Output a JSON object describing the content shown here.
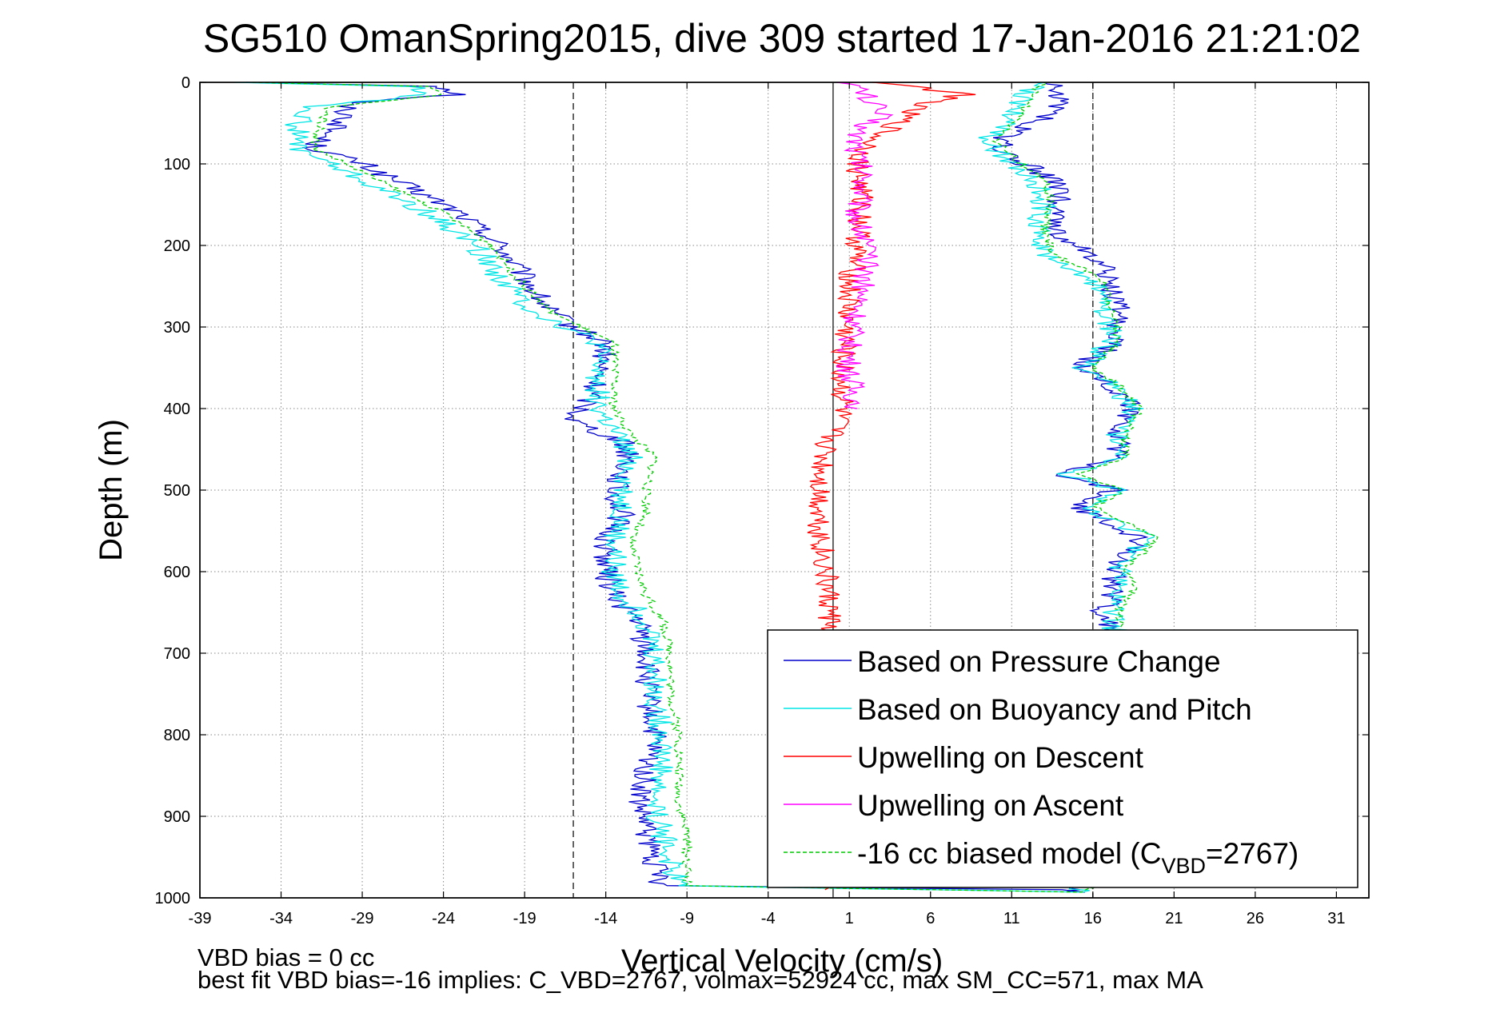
{
  "chart_data": {
    "type": "line",
    "title": "SG510 OmanSpring2015, dive 309 started 17-Jan-2016 21:21:02",
    "xlabel": "Vertical Velocity (cm/s)",
    "ylabel": "Depth (m)",
    "xlim": [
      -39,
      33
    ],
    "ylim": [
      1000,
      0
    ],
    "y_reversed": true,
    "grid": true,
    "legend_position": "bottom-right",
    "x_ticks": [
      -39,
      -34,
      -29,
      -24,
      -19,
      -14,
      -9,
      -4,
      1,
      6,
      11,
      16,
      21,
      26,
      31
    ],
    "y_ticks": [
      0,
      100,
      200,
      300,
      400,
      500,
      600,
      700,
      800,
      900,
      1000
    ],
    "reference_lines": [
      {
        "x": 0,
        "style": "solid"
      },
      {
        "x": -16,
        "style": "dashed"
      },
      {
        "x": 16,
        "style": "dashed"
      }
    ],
    "series": [
      {
        "name": "Based on Pressure Change",
        "color": "#0000cc",
        "style": "solid",
        "points": [
          [
            -36,
            0
          ],
          [
            -24,
            5
          ],
          [
            -23,
            15
          ],
          [
            -30,
            25
          ],
          [
            -30,
            45
          ],
          [
            -31,
            60
          ],
          [
            -32,
            80
          ],
          [
            -29,
            100
          ],
          [
            -26,
            130
          ],
          [
            -23,
            160
          ],
          [
            -20.5,
            200
          ],
          [
            -19,
            240
          ],
          [
            -17.5,
            280
          ],
          [
            -16,
            300
          ],
          [
            -14,
            320
          ],
          [
            -14.5,
            360
          ],
          [
            -15,
            390
          ],
          [
            -16,
            415
          ],
          [
            -13,
            440
          ],
          [
            -12.5,
            460
          ],
          [
            -13.5,
            500
          ],
          [
            -13,
            530
          ],
          [
            -14,
            560
          ],
          [
            -14,
            600
          ],
          [
            -13.5,
            630
          ],
          [
            -12,
            660
          ],
          [
            -11.5,
            700
          ],
          [
            -11.5,
            750
          ],
          [
            -11,
            800
          ],
          [
            -11.5,
            840
          ],
          [
            -12,
            880
          ],
          [
            -11.5,
            920
          ],
          [
            -11,
            960
          ],
          [
            -10.5,
            985
          ],
          [
            14,
            990
          ],
          [
            15,
            993
          ],
          [
            15,
            990
          ],
          [
            14,
            975
          ],
          [
            13,
            950
          ],
          [
            14,
            920
          ],
          [
            15,
            890
          ],
          [
            16,
            860
          ],
          [
            17,
            830
          ],
          [
            17.5,
            800
          ],
          [
            16.5,
            770
          ],
          [
            16,
            740
          ],
          [
            17,
            700
          ],
          [
            17.5,
            680
          ],
          [
            16.5,
            650
          ],
          [
            17.5,
            620
          ],
          [
            17,
            595
          ],
          [
            19,
            560
          ],
          [
            17,
            540
          ],
          [
            15,
            520
          ],
          [
            17.5,
            500
          ],
          [
            14,
            480
          ],
          [
            17.5,
            460
          ],
          [
            17.5,
            430
          ],
          [
            18.5,
            400
          ],
          [
            17,
            370
          ],
          [
            15,
            350
          ],
          [
            17.5,
            320
          ],
          [
            17.5,
            300
          ],
          [
            17.5,
            270
          ],
          [
            17,
            240
          ],
          [
            16,
            210
          ],
          [
            13.5,
            180
          ],
          [
            14,
            150
          ],
          [
            13.5,
            120
          ],
          [
            11,
            90
          ],
          [
            10,
            70
          ],
          [
            13.5,
            40
          ],
          [
            14,
            10
          ],
          [
            13,
            0
          ]
        ]
      },
      {
        "name": "Based on Buoyancy and Pitch",
        "color": "#00e5e5",
        "style": "solid",
        "points": [
          [
            -36.5,
            0
          ],
          [
            -26,
            5
          ],
          [
            -25,
            15
          ],
          [
            -32,
            30
          ],
          [
            -33,
            50
          ],
          [
            -33,
            80
          ],
          [
            -31,
            100
          ],
          [
            -28,
            130
          ],
          [
            -25,
            160
          ],
          [
            -22,
            200
          ],
          [
            -20.5,
            240
          ],
          [
            -18.5,
            280
          ],
          [
            -16.5,
            300
          ],
          [
            -14.5,
            320
          ],
          [
            -14.5,
            360
          ],
          [
            -14.5,
            400
          ],
          [
            -13.5,
            430
          ],
          [
            -12.5,
            460
          ],
          [
            -13,
            500
          ],
          [
            -13,
            530
          ],
          [
            -13.5,
            560
          ],
          [
            -13.5,
            600
          ],
          [
            -13,
            630
          ],
          [
            -11.5,
            660
          ],
          [
            -11,
            700
          ],
          [
            -11,
            750
          ],
          [
            -10.5,
            800
          ],
          [
            -10.5,
            840
          ],
          [
            -11,
            880
          ],
          [
            -10.5,
            920
          ],
          [
            -10,
            960
          ],
          [
            -9.5,
            985
          ],
          [
            15.5,
            993
          ],
          [
            15,
            985
          ],
          [
            14,
            960
          ],
          [
            14.5,
            920
          ],
          [
            15.5,
            880
          ],
          [
            16.5,
            840
          ],
          [
            17,
            800
          ],
          [
            16.5,
            770
          ],
          [
            16,
            740
          ],
          [
            17,
            700
          ],
          [
            17.5,
            680
          ],
          [
            17,
            650
          ],
          [
            18,
            620
          ],
          [
            17.5,
            595
          ],
          [
            19.5,
            560
          ],
          [
            17.5,
            540
          ],
          [
            15.5,
            520
          ],
          [
            17.5,
            500
          ],
          [
            14.5,
            480
          ],
          [
            17.5,
            460
          ],
          [
            17.5,
            430
          ],
          [
            18.5,
            400
          ],
          [
            17,
            370
          ],
          [
            15.5,
            350
          ],
          [
            17,
            320
          ],
          [
            17,
            300
          ],
          [
            16.5,
            270
          ],
          [
            16,
            240
          ],
          [
            13,
            210
          ],
          [
            12.5,
            180
          ],
          [
            13,
            150
          ],
          [
            12.5,
            120
          ],
          [
            10.5,
            90
          ],
          [
            9.5,
            70
          ],
          [
            11,
            40
          ],
          [
            12,
            10
          ],
          [
            13,
            0
          ]
        ]
      },
      {
        "name": "Upwelling on Descent",
        "color": "#ff0000",
        "style": "solid",
        "points": [
          [
            3,
            0
          ],
          [
            5,
            5
          ],
          [
            8,
            15
          ],
          [
            5,
            30
          ],
          [
            4,
            50
          ],
          [
            2.5,
            70
          ],
          [
            1.5,
            100
          ],
          [
            1.8,
            150
          ],
          [
            1.5,
            200
          ],
          [
            1,
            250
          ],
          [
            0.8,
            300
          ],
          [
            0.5,
            350
          ],
          [
            0.6,
            400
          ],
          [
            -0.5,
            450
          ],
          [
            -0.8,
            500
          ],
          [
            -0.8,
            550
          ],
          [
            -0.5,
            600
          ],
          [
            -0.2,
            650
          ],
          [
            0,
            700
          ],
          [
            0,
            760
          ],
          [
            -1,
            800
          ],
          [
            -1.5,
            850
          ],
          [
            -1.5,
            900
          ],
          [
            -1.5,
            950
          ],
          [
            -0.5,
            990
          ]
        ]
      },
      {
        "name": "Upwelling on Ascent",
        "color": "#ff00ff",
        "style": "solid",
        "points": [
          [
            1,
            0
          ],
          [
            2,
            15
          ],
          [
            3,
            40
          ],
          [
            1.5,
            60
          ],
          [
            1.5,
            90
          ],
          [
            2,
            120
          ],
          [
            1.5,
            160
          ],
          [
            2,
            200
          ],
          [
            2,
            240
          ],
          [
            1.5,
            280
          ],
          [
            1,
            320
          ],
          [
            1,
            360
          ],
          [
            1.5,
            400
          ]
        ]
      },
      {
        "name": "-16 cc biased model (C_VBD=2767)",
        "color": "#00cc00",
        "style": "dashed",
        "points": [
          [
            -36,
            0
          ],
          [
            -25,
            5
          ],
          [
            -24,
            15
          ],
          [
            -31,
            30
          ],
          [
            -31.5,
            50
          ],
          [
            -32,
            80
          ],
          [
            -30,
            100
          ],
          [
            -27,
            130
          ],
          [
            -24,
            160
          ],
          [
            -21,
            200
          ],
          [
            -19.5,
            240
          ],
          [
            -17.5,
            280
          ],
          [
            -15.5,
            300
          ],
          [
            -13.5,
            320
          ],
          [
            -13.5,
            360
          ],
          [
            -13.5,
            400
          ],
          [
            -12.5,
            430
          ],
          [
            -11,
            460
          ],
          [
            -11.5,
            500
          ],
          [
            -11.5,
            530
          ],
          [
            -12.5,
            560
          ],
          [
            -12,
            600
          ],
          [
            -11.5,
            630
          ],
          [
            -10.5,
            660
          ],
          [
            -10,
            700
          ],
          [
            -10,
            750
          ],
          [
            -9.5,
            800
          ],
          [
            -9.5,
            840
          ],
          [
            -9.5,
            880
          ],
          [
            -9,
            920
          ],
          [
            -9,
            960
          ],
          [
            -9,
            985
          ],
          [
            15.5,
            993
          ],
          [
            16,
            985
          ],
          [
            15,
            960
          ],
          [
            15.5,
            920
          ],
          [
            16,
            880
          ],
          [
            17,
            840
          ],
          [
            17.5,
            800
          ],
          [
            17,
            770
          ],
          [
            16.5,
            740
          ],
          [
            17.5,
            700
          ],
          [
            18,
            680
          ],
          [
            17.5,
            650
          ],
          [
            18.5,
            620
          ],
          [
            18,
            595
          ],
          [
            20,
            560
          ],
          [
            18,
            540
          ],
          [
            16,
            520
          ],
          [
            18,
            500
          ],
          [
            15,
            480
          ],
          [
            18,
            460
          ],
          [
            18,
            430
          ],
          [
            19,
            400
          ],
          [
            17.5,
            370
          ],
          [
            16,
            350
          ],
          [
            17.5,
            320
          ],
          [
            17.5,
            300
          ],
          [
            17,
            270
          ],
          [
            16.5,
            240
          ],
          [
            13.5,
            210
          ],
          [
            13,
            180
          ],
          [
            13.5,
            150
          ],
          [
            13,
            120
          ],
          [
            11,
            90
          ],
          [
            10,
            70
          ],
          [
            11.5,
            40
          ],
          [
            12.5,
            10
          ],
          [
            13,
            0
          ]
        ]
      }
    ],
    "legend_entries": [
      {
        "label": "Based on Pressure Change",
        "color": "#0000cc",
        "style": "solid"
      },
      {
        "label": "Based on Buoyancy and Pitch",
        "color": "#00e5e5",
        "style": "solid"
      },
      {
        "label": "Upwelling on Descent",
        "color": "#ff0000",
        "style": "solid"
      },
      {
        "label": "Upwelling on Ascent",
        "color": "#ff00ff",
        "style": "solid"
      },
      {
        "label_prefix": "-16 cc biased model (C",
        "label_sub": "VBD",
        "label_suffix": "=2767)",
        "color": "#00cc00",
        "style": "dashed"
      }
    ],
    "annotations": [
      "VBD bias = 0 cc",
      "best fit VBD bias=-16 implies: C_VBD=2767, volmax=52924 cc, max SM_CC=571, max MA"
    ]
  }
}
